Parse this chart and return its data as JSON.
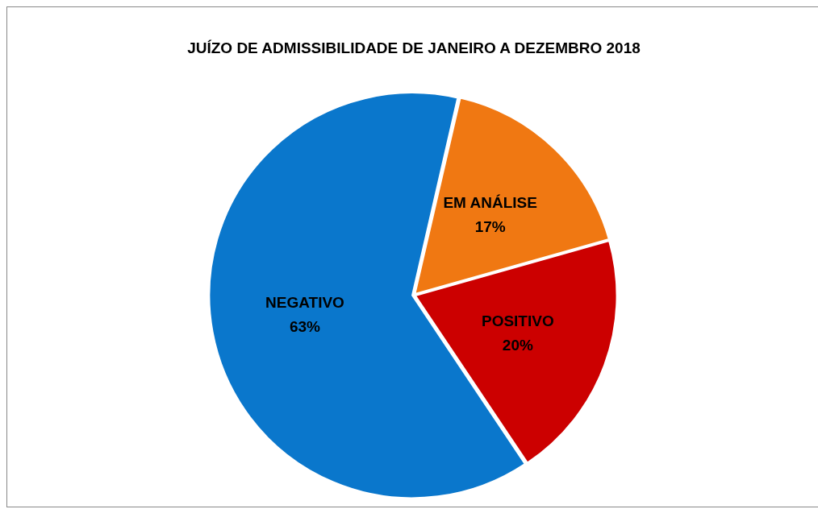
{
  "chart_data": {
    "type": "pie",
    "title": "JUÍZO DE ADMISSIBILIDADE DE JANEIRO A DEZEMBRO 2018",
    "categories": [
      "EM ANÁLISE",
      "POSITIVO",
      "NEGATIVO"
    ],
    "values": [
      17,
      20,
      63
    ],
    "colors": [
      "#f07812",
      "#cc0000",
      "#0a77cc"
    ],
    "value_labels": [
      "17%",
      "20%",
      "63%"
    ],
    "legend": false
  }
}
